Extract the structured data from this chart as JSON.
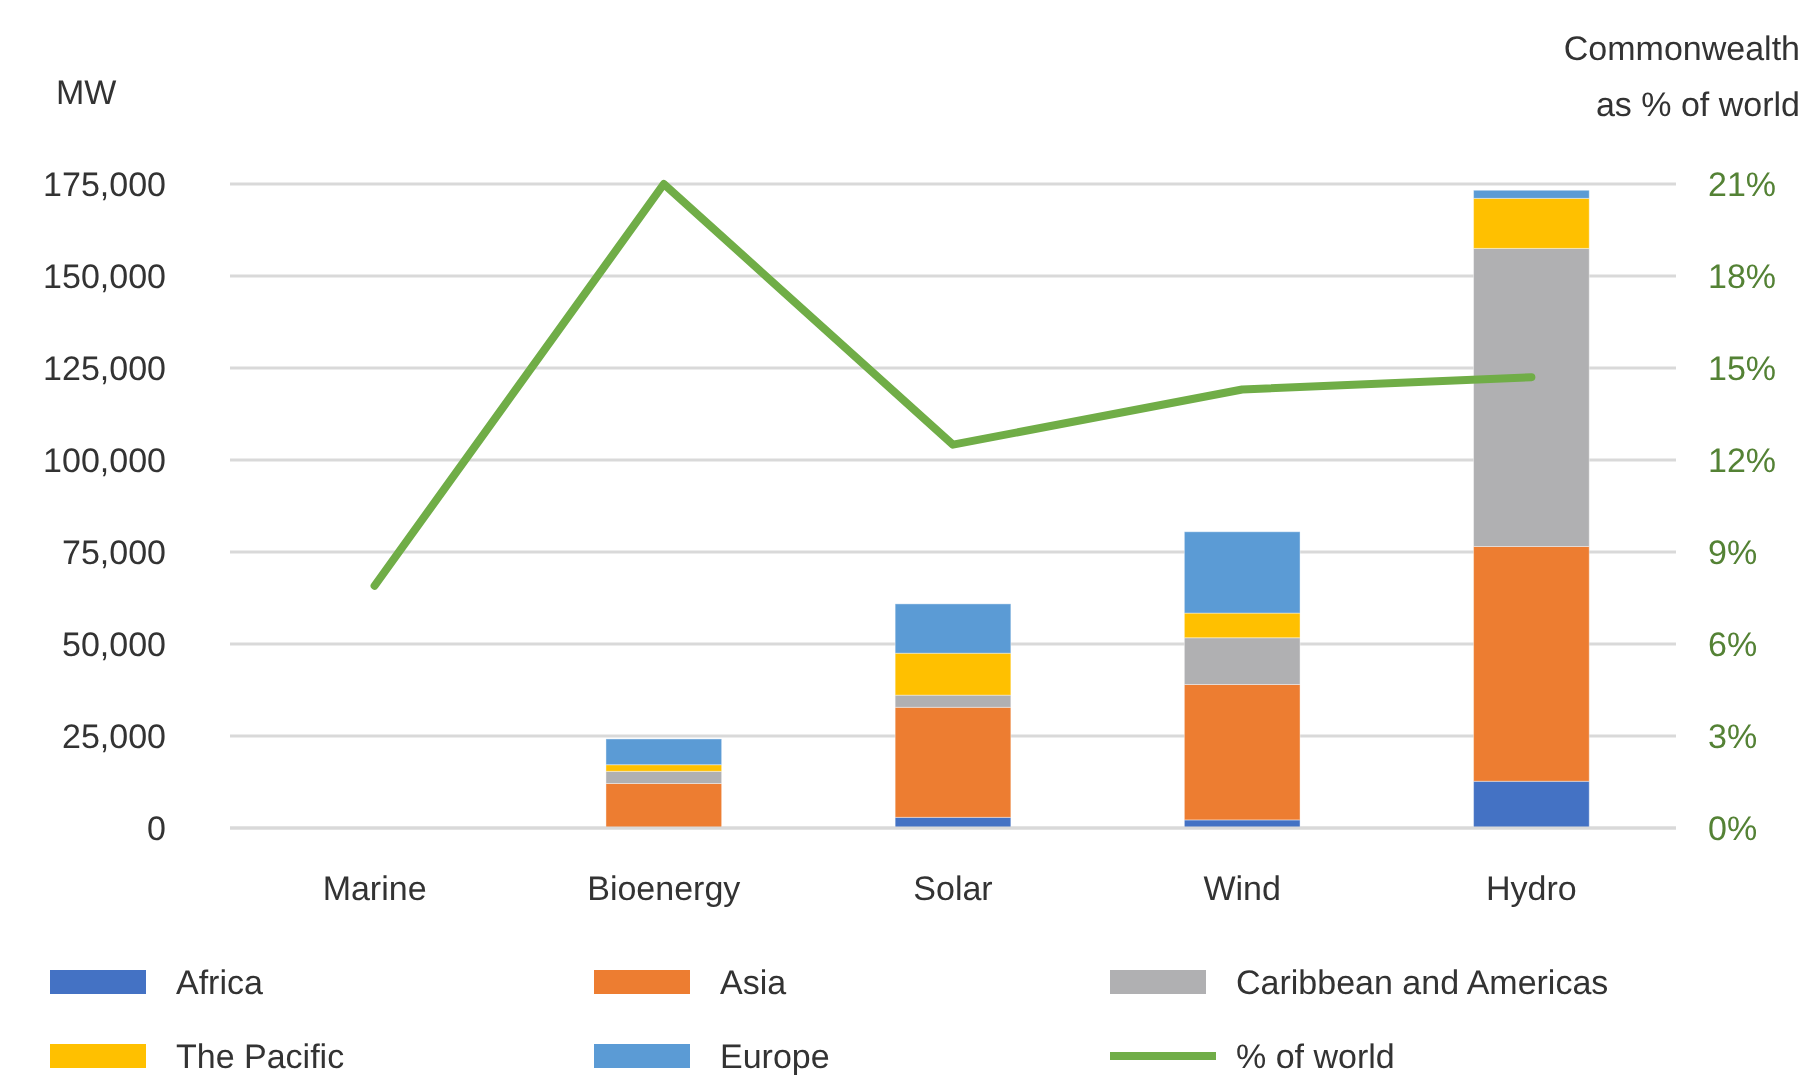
{
  "chart_data": {
    "type": "bar",
    "stacked": true,
    "categories": [
      "Marine",
      "Bioenergy",
      "Solar",
      "Wind",
      "Hydro"
    ],
    "ylabel": "MW",
    "y2label": "Commonwealth\nas % of world",
    "ylim": [
      0,
      175000
    ],
    "yticks": [
      {
        "value": 0,
        "label": "0"
      },
      {
        "value": 25000,
        "label": "25,000"
      },
      {
        "value": 50000,
        "label": "50,000"
      },
      {
        "value": 75000,
        "label": "75,000"
      },
      {
        "value": 100000,
        "label": "100,000"
      },
      {
        "value": 125000,
        "label": "125,000"
      },
      {
        "value": 150000,
        "label": "150,000"
      },
      {
        "value": 175000,
        "label": "175,000"
      }
    ],
    "y2lim": [
      0,
      21
    ],
    "y2ticks": [
      {
        "value": 0,
        "label": "0%"
      },
      {
        "value": 3,
        "label": "3%"
      },
      {
        "value": 6,
        "label": "6%"
      },
      {
        "value": 9,
        "label": "9%"
      },
      {
        "value": 12,
        "label": "12%"
      },
      {
        "value": 15,
        "label": "15%"
      },
      {
        "value": 18,
        "label": "18%"
      },
      {
        "value": 21,
        "label": "21%"
      }
    ],
    "grid": "y",
    "legend": "bottom",
    "series": [
      {
        "name": "Africa",
        "color": "#4472c4",
        "values": [
          null,
          null,
          2900,
          2200,
          12700
        ]
      },
      {
        "name": "Asia",
        "color": "#ed7d31",
        "values": [
          null,
          12100,
          29900,
          36800,
          63800
        ]
      },
      {
        "name": "Caribbean and Americas",
        "color": "#b0b0b2",
        "values": [
          null,
          3300,
          3300,
          12700,
          81000
        ]
      },
      {
        "name": "The Pacific",
        "color": "#ffc000",
        "values": [
          null,
          1800,
          11400,
          6700,
          13600
        ]
      },
      {
        "name": "Europe",
        "color": "#5b9bd5",
        "values": [
          null,
          7000,
          13400,
          22100,
          2200
        ]
      },
      {
        "name": "% of world",
        "type": "line",
        "axis": "y2",
        "color": "#70ad47",
        "values": [
          7.9,
          21,
          12.5,
          14.3,
          14.7
        ]
      }
    ]
  }
}
